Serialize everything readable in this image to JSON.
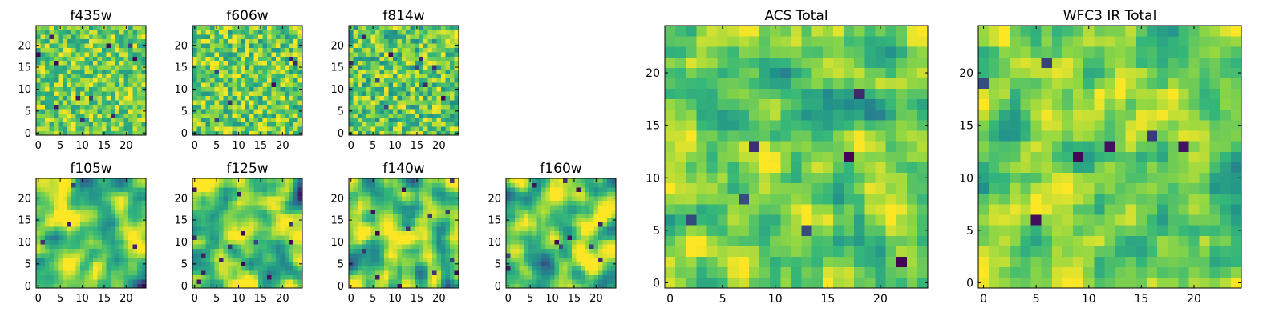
{
  "figure": {
    "background": "#ffffff",
    "colormap": "viridis",
    "colormap_stops": [
      "#440154",
      "#31688e",
      "#21918c",
      "#35b779",
      "#90d743",
      "#fde725"
    ]
  },
  "chart_data": [
    {
      "type": "heatmap",
      "title": "f435w",
      "grid_size": 25,
      "xlim": [
        -0.5,
        24.5
      ],
      "ylim": [
        -0.5,
        24.5
      ],
      "xticks": [
        0,
        5,
        10,
        15,
        20
      ],
      "yticks": [
        0,
        5,
        10,
        15,
        20
      ],
      "value_range": [
        0,
        1
      ],
      "texture": "noisy",
      "mean_level": 0.72,
      "spread": 0.16,
      "seed": 11
    },
    {
      "type": "heatmap",
      "title": "f606w",
      "grid_size": 25,
      "xlim": [
        -0.5,
        24.5
      ],
      "ylim": [
        -0.5,
        24.5
      ],
      "xticks": [
        0,
        5,
        10,
        15,
        20
      ],
      "yticks": [
        0,
        5,
        10,
        15,
        20
      ],
      "value_range": [
        0,
        1
      ],
      "texture": "noisy",
      "mean_level": 0.72,
      "spread": 0.18,
      "seed": 23
    },
    {
      "type": "heatmap",
      "title": "f814w",
      "grid_size": 25,
      "xlim": [
        -0.5,
        24.5
      ],
      "ylim": [
        -0.5,
        24.5
      ],
      "xticks": [
        0,
        5,
        10,
        15,
        20
      ],
      "yticks": [
        0,
        5,
        10,
        15,
        20
      ],
      "value_range": [
        0,
        1
      ],
      "texture": "noisy",
      "mean_level": 0.7,
      "spread": 0.18,
      "seed": 37
    },
    {
      "type": "heatmap",
      "title": "f105w",
      "grid_size": 25,
      "xlim": [
        -0.5,
        24.5
      ],
      "ylim": [
        -0.5,
        24.5
      ],
      "xticks": [
        0,
        5,
        10,
        15,
        20
      ],
      "yticks": [
        0,
        5,
        10,
        15,
        20
      ],
      "value_range": [
        0,
        1
      ],
      "texture": "blobby",
      "mean_level": 0.7,
      "spread": 0.2,
      "seed": 41
    },
    {
      "type": "heatmap",
      "title": "f125w",
      "grid_size": 25,
      "xlim": [
        -0.5,
        24.5
      ],
      "ylim": [
        -0.5,
        24.5
      ],
      "xticks": [
        0,
        5,
        10,
        15,
        20
      ],
      "yticks": [
        0,
        5,
        10,
        15,
        20
      ],
      "value_range": [
        0,
        1
      ],
      "texture": "blobby",
      "mean_level": 0.7,
      "spread": 0.2,
      "seed": 53
    },
    {
      "type": "heatmap",
      "title": "f140w",
      "grid_size": 25,
      "xlim": [
        -0.5,
        24.5
      ],
      "ylim": [
        -0.5,
        24.5
      ],
      "xticks": [
        0,
        5,
        10,
        15,
        20
      ],
      "yticks": [
        0,
        5,
        10,
        15,
        20
      ],
      "value_range": [
        0,
        1
      ],
      "texture": "blobby",
      "mean_level": 0.7,
      "spread": 0.2,
      "seed": 67
    },
    {
      "type": "heatmap",
      "title": "f160w",
      "grid_size": 25,
      "xlim": [
        -0.5,
        24.5
      ],
      "ylim": [
        -0.5,
        24.5
      ],
      "xticks": [
        0,
        5,
        10,
        15,
        20
      ],
      "yticks": [
        0,
        5,
        10,
        15,
        20
      ],
      "value_range": [
        0,
        1
      ],
      "texture": "blobby",
      "mean_level": 0.7,
      "spread": 0.21,
      "seed": 79
    },
    {
      "type": "heatmap",
      "title": "ACS Total",
      "grid_size": 25,
      "xlim": [
        -0.5,
        24.5
      ],
      "ylim": [
        -0.5,
        24.5
      ],
      "xticks": [
        0,
        5,
        10,
        15,
        20
      ],
      "yticks": [
        0,
        5,
        10,
        15,
        20
      ],
      "value_range": [
        0,
        1
      ],
      "texture": "smooth",
      "mean_level": 0.72,
      "spread": 0.14,
      "seed": 97
    },
    {
      "type": "heatmap",
      "title": "WFC3 IR Total",
      "grid_size": 25,
      "xlim": [
        -0.5,
        24.5
      ],
      "ylim": [
        -0.5,
        24.5
      ],
      "xticks": [
        0,
        5,
        10,
        15,
        20
      ],
      "yticks": [
        0,
        5,
        10,
        15,
        20
      ],
      "value_range": [
        0,
        1
      ],
      "texture": "smooth",
      "mean_level": 0.74,
      "spread": 0.13,
      "seed": 113
    }
  ]
}
